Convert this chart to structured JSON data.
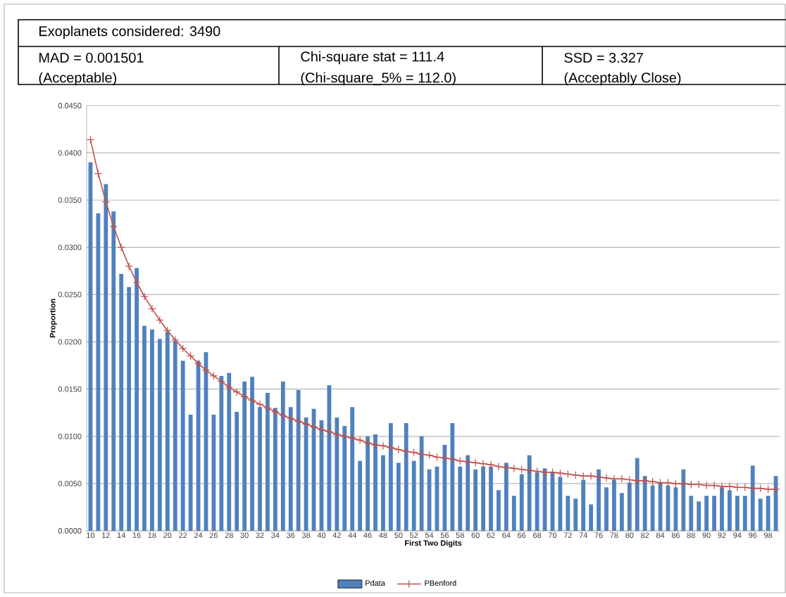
{
  "chart_data": {
    "type": "bar",
    "title": "Exoplanets considered: 3490",
    "annotations": [
      "MAD = 0.001501",
      "(Acceptable)",
      "Chi-square stat = 111.4",
      "(Chi-square_5% = 112.0)",
      "SSD = 3.327",
      "(Acceptably Close)"
    ],
    "xlabel": "First Two Digits",
    "ylabel": "Proportion",
    "categories": [
      "10",
      null,
      "12",
      null,
      "14",
      null,
      "16",
      null,
      "18",
      null,
      "20",
      null,
      "22",
      null,
      "24",
      null,
      "26",
      null,
      "28",
      null,
      "30",
      null,
      "32",
      null,
      "34",
      null,
      "36",
      null,
      "38",
      null,
      "40",
      null,
      "42",
      null,
      "44",
      null,
      "46",
      null,
      "48",
      null,
      "50",
      null,
      "52",
      null,
      "54",
      null,
      "56",
      null,
      "58",
      null,
      "60",
      null,
      "62",
      null,
      "64",
      null,
      "66",
      null,
      "68",
      null,
      "70",
      null,
      "72",
      null,
      "74",
      null,
      "76",
      null,
      "78",
      null,
      "80",
      null,
      "82",
      null,
      "84",
      null,
      "86",
      null,
      "88",
      null,
      "90",
      null,
      "92",
      null,
      "94",
      null,
      "96",
      null,
      "98",
      null
    ],
    "series": [
      {
        "name": "Pdata",
        "color": "#4f81bd",
        "values": [
          0.039,
          0.0336,
          0.0367,
          0.0338,
          0.0272,
          0.0258,
          0.0278,
          0.0217,
          0.0213,
          0.0203,
          0.0211,
          0.0201,
          0.018,
          0.0123,
          0.018,
          0.0189,
          0.0123,
          0.0164,
          0.0167,
          0.0126,
          0.0158,
          0.0163,
          0.0131,
          0.0146,
          0.013,
          0.0158,
          0.0131,
          0.0149,
          0.012,
          0.0129,
          0.0117,
          0.0154,
          0.012,
          0.0111,
          0.0131,
          0.0074,
          0.01,
          0.0102,
          0.008,
          0.0114,
          0.0072,
          0.0114,
          0.0074,
          0.01,
          0.0065,
          0.0068,
          0.0091,
          0.0114,
          0.0068,
          0.008,
          0.0065,
          0.0068,
          0.0068,
          0.0043,
          0.0072,
          0.0037,
          0.006,
          0.008,
          0.0062,
          0.0066,
          0.0062,
          0.0057,
          0.0037,
          0.0034,
          0.0054,
          0.0028,
          0.0065,
          0.0046,
          0.0054,
          0.004,
          0.0051,
          0.0077,
          0.0058,
          0.0048,
          0.0051,
          0.0048,
          0.0046,
          0.0065,
          0.0037,
          0.0031,
          0.0037,
          0.0037,
          0.0046,
          0.0043,
          0.0037,
          0.0037,
          0.0069,
          0.0034,
          0.0037,
          0.0058
        ]
      },
      {
        "name": "PBenford",
        "type": "line",
        "color": "#c0504d",
        "marker": "cross",
        "values": [
          0.0414,
          0.0378,
          0.0348,
          0.0322,
          0.03,
          0.028,
          0.0263,
          0.0248,
          0.0235,
          0.0223,
          0.0212,
          0.0202,
          0.0193,
          0.0185,
          0.0177,
          0.017,
          0.0164,
          0.0158,
          0.0152,
          0.0147,
          0.0142,
          0.0138,
          0.0134,
          0.013,
          0.0126,
          0.0122,
          0.0119,
          0.0116,
          0.0113,
          0.011,
          0.0107,
          0.0105,
          0.0102,
          0.01,
          0.0098,
          0.0096,
          0.0093,
          0.0091,
          0.009,
          0.0088,
          0.0086,
          0.0084,
          0.0083,
          0.0081,
          0.008,
          0.0078,
          0.0077,
          0.0076,
          0.0074,
          0.0073,
          0.0072,
          0.0071,
          0.007,
          0.0068,
          0.0067,
          0.0066,
          0.0065,
          0.0064,
          0.0063,
          0.0062,
          0.0062,
          0.0061,
          0.006,
          0.0059,
          0.0058,
          0.0058,
          0.0057,
          0.0056,
          0.0055,
          0.0055,
          0.0054,
          0.0053,
          0.0053,
          0.0052,
          0.0051,
          0.0051,
          0.005,
          0.005,
          0.0049,
          0.0049,
          0.0048,
          0.0048,
          0.0047,
          0.0047,
          0.0046,
          0.0046,
          0.0045,
          0.0045,
          0.0044,
          0.0044
        ]
      }
    ],
    "ylim": [
      0,
      0.045
    ],
    "yticks": [
      {
        "value": 0,
        "label": "0.0000"
      },
      {
        "value": 0.005,
        "label": "0.0050"
      },
      {
        "value": 0.01,
        "label": "0.0100"
      },
      {
        "value": 0.015,
        "label": "0.0150"
      },
      {
        "value": 0.02,
        "label": "0.0200"
      },
      {
        "value": 0.025,
        "label": "0.0250"
      },
      {
        "value": 0.03,
        "label": "0.0300"
      },
      {
        "value": 0.035,
        "label": "0.0350"
      },
      {
        "value": 0.04,
        "label": "0.0400"
      },
      {
        "value": 0.045,
        "label": "0.0450"
      }
    ],
    "grid": "y",
    "legend": "bottom"
  }
}
